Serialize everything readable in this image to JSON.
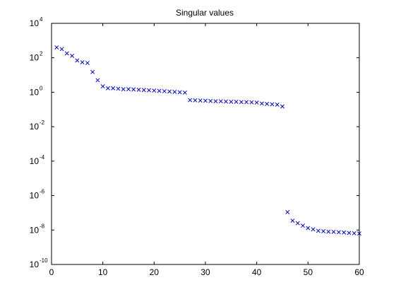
{
  "chart_data": {
    "type": "scatter",
    "title": "Singular values",
    "xlabel": "",
    "ylabel": "",
    "xlim": [
      0,
      60
    ],
    "ylim": [
      1e-10,
      10000.0
    ],
    "yscale": "log",
    "grid": false,
    "marker": "x",
    "marker_color": "#0000ff",
    "axes_color": "#000000",
    "background": "#ffffff",
    "x_ticks": [
      {
        "value": 0,
        "label": "0"
      },
      {
        "value": 10,
        "label": "10"
      },
      {
        "value": 20,
        "label": "20"
      },
      {
        "value": 30,
        "label": "30"
      },
      {
        "value": 40,
        "label": "40"
      },
      {
        "value": 50,
        "label": "50"
      },
      {
        "value": 60,
        "label": "60"
      }
    ],
    "y_ticks": [
      {
        "value": 10000.0,
        "base": "10",
        "exp": "4"
      },
      {
        "value": 100.0,
        "base": "10",
        "exp": "2"
      },
      {
        "value": 1.0,
        "base": "10",
        "exp": "0"
      },
      {
        "value": 0.01,
        "base": "10",
        "exp": "-2"
      },
      {
        "value": 0.0001,
        "base": "10",
        "exp": "-4"
      },
      {
        "value": 1e-06,
        "base": "10",
        "exp": "-6"
      },
      {
        "value": 1e-08,
        "base": "10",
        "exp": "-8"
      },
      {
        "value": 1e-10,
        "base": "10",
        "exp": "-10"
      }
    ],
    "series": [
      {
        "x": [
          1,
          2,
          3,
          4,
          5,
          6,
          7,
          8,
          9,
          10,
          11,
          12,
          13,
          14,
          15,
          16,
          17,
          18,
          19,
          20,
          21,
          22,
          23,
          24,
          25,
          26,
          27,
          28,
          29,
          30,
          31,
          32,
          33,
          34,
          35,
          36,
          37,
          38,
          39,
          40,
          41,
          42,
          43,
          44,
          45,
          46,
          47,
          48,
          49,
          50,
          51,
          52,
          53,
          54,
          55,
          56,
          57,
          58,
          59,
          60
        ],
        "y": [
          400,
          320,
          180,
          130,
          70,
          55,
          50,
          15,
          5,
          2.2,
          1.7,
          1.7,
          1.6,
          1.5,
          1.5,
          1.45,
          1.4,
          1.35,
          1.3,
          1.25,
          1.2,
          1.15,
          1.1,
          1.05,
          1.0,
          0.95,
          0.35,
          0.34,
          0.33,
          0.32,
          0.31,
          0.3,
          0.3,
          0.29,
          0.28,
          0.28,
          0.27,
          0.27,
          0.26,
          0.25,
          0.22,
          0.21,
          0.2,
          0.19,
          0.15,
          1.1e-07,
          3.5e-08,
          2.5e-08,
          1.8e-08,
          1.3e-08,
          1.1e-08,
          9e-09,
          8.5e-09,
          8e-09,
          7.8e-09,
          7.5e-09,
          7.2e-09,
          6.8e-09,
          6.5e-09,
          6.3e-09
        ]
      }
    ]
  }
}
